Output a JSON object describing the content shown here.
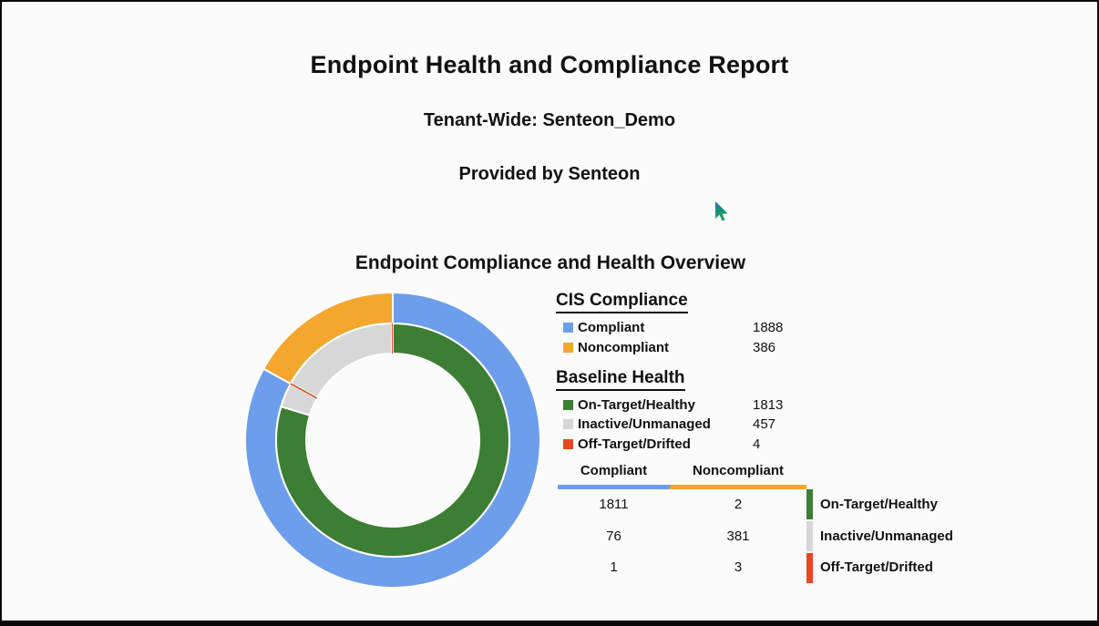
{
  "page": {
    "title": "Endpoint Health and Compliance Report",
    "tenant_line": "Tenant-Wide: Senteon_Demo",
    "provider_line": "Provided by Senteon",
    "section_title": "Endpoint Compliance and Health Overview"
  },
  "colors": {
    "compliant_blue": "#6D9EEB",
    "noncompliant_orange": "#F3A72F",
    "on_target_green": "#3C7E33",
    "inactive_gray": "#D7D7D7",
    "off_target_red": "#E8481F"
  },
  "chart_data": [
    {
      "type": "pie",
      "title": "Endpoint Compliance and Health Overview",
      "subtype": "double-ring-donut",
      "legend_position": "right",
      "rings": [
        {
          "name": "CIS Compliance (outer ring)",
          "slices": [
            {
              "label": "Compliant",
              "value": 1888,
              "color": "#6D9EEB"
            },
            {
              "label": "Noncompliant",
              "value": 386,
              "color": "#F3A72F"
            }
          ]
        },
        {
          "name": "Baseline Health by CIS Compliance (inner ring)",
          "slices": [
            {
              "label": "Compliant / On-Target-Healthy",
              "value": 1811,
              "color": "#3C7E33"
            },
            {
              "label": "Compliant / Inactive-Unmanaged",
              "value": 76,
              "color": "#D7D7D7"
            },
            {
              "label": "Compliant / Off-Target-Drifted",
              "value": 1,
              "color": "#E8481F"
            },
            {
              "label": "Noncompliant / On-Target-Healthy",
              "value": 2,
              "color": "#3C7E33"
            },
            {
              "label": "Noncompliant / Inactive-Unmanaged",
              "value": 381,
              "color": "#D7D7D7"
            },
            {
              "label": "Noncompliant / Off-Target-Drifted",
              "value": 3,
              "color": "#E8481F"
            }
          ]
        }
      ]
    },
    {
      "type": "table",
      "columns": [
        "Compliant",
        "Noncompliant"
      ],
      "row_labels": [
        "On-Target/Healthy",
        "Inactive/Unmanaged",
        "Off-Target/Drifted"
      ],
      "values": [
        [
          1811,
          2
        ],
        [
          76,
          381
        ],
        [
          1,
          3
        ]
      ]
    }
  ],
  "legend": {
    "groups": [
      {
        "title": "CIS Compliance",
        "items": [
          {
            "label": "Compliant",
            "value": "1888",
            "color": "#6D9EEB"
          },
          {
            "label": "Noncompliant",
            "value": "386",
            "color": "#F3A72F"
          }
        ]
      },
      {
        "title": "Baseline Health",
        "items": [
          {
            "label": "On-Target/Healthy",
            "value": "1813",
            "color": "#3C7E33"
          },
          {
            "label": "Inactive/Unmanaged",
            "value": "457",
            "color": "#D7D7D7"
          },
          {
            "label": "Off-Target/Drifted",
            "value": "4",
            "color": "#E8481F"
          }
        ]
      }
    ]
  },
  "table": {
    "headers": [
      {
        "label": "Compliant",
        "color": "#6D9EEB"
      },
      {
        "label": "Noncompliant",
        "color": "#F3A72F"
      }
    ],
    "rows": [
      {
        "compliant": "1811",
        "noncompliant": "2",
        "label": "On-Target/Healthy",
        "color": "#3C7E33"
      },
      {
        "compliant": "76",
        "noncompliant": "381",
        "label": "Inactive/Unmanaged",
        "color": "#D7D7D7"
      },
      {
        "compliant": "1",
        "noncompliant": "3",
        "label": "Off-Target/Drifted",
        "color": "#E8481F"
      }
    ]
  }
}
